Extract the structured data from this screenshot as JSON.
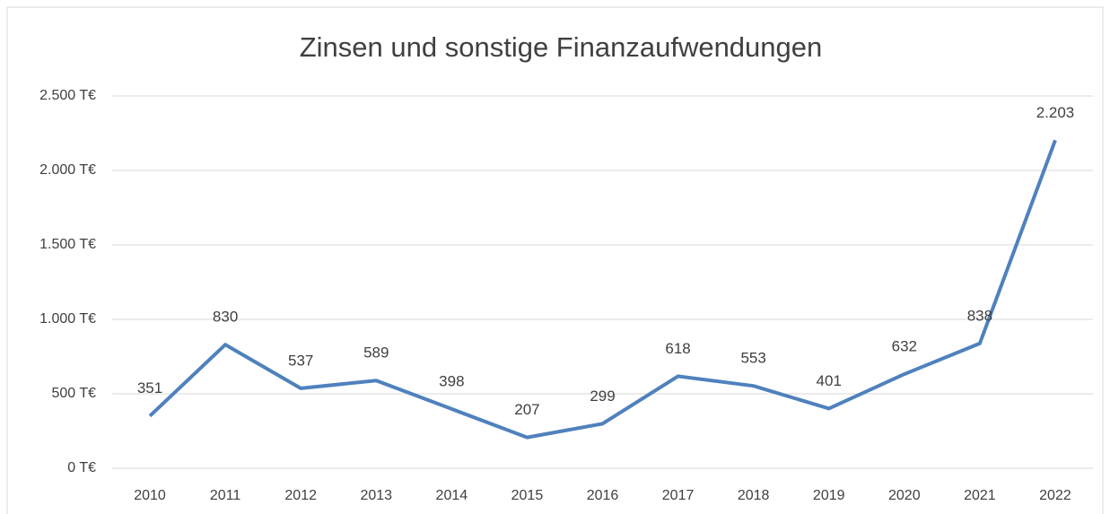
{
  "chart_data": {
    "type": "line",
    "title": "Zinsen und sonstige Finanzaufwendungen",
    "categories": [
      "2010",
      "2011",
      "2012",
      "2013",
      "2014",
      "2015",
      "2016",
      "2017",
      "2018",
      "2019",
      "2020",
      "2021",
      "2022"
    ],
    "series": [
      {
        "name": "Zinsen und sonstige Finanzaufwendungen",
        "color": "#4f81bd",
        "values": [
          351,
          830,
          537,
          589,
          398,
          207,
          299,
          618,
          553,
          401,
          632,
          838,
          2203
        ],
        "value_labels": [
          "351",
          "830",
          "537",
          "589",
          "398",
          "207",
          "299",
          "618",
          "553",
          "401",
          "632",
          "838",
          "2.203"
        ]
      }
    ],
    "ylim": [
      0,
      2500
    ],
    "yticks": [
      {
        "value": 0,
        "label": "0 T€"
      },
      {
        "value": 500,
        "label": "500 T€"
      },
      {
        "value": 1000,
        "label": "1.000 T€"
      },
      {
        "value": 1500,
        "label": "1.500 T€"
      },
      {
        "value": 2000,
        "label": "2.000 T€"
      },
      {
        "value": 2500,
        "label": "2.500 T€"
      }
    ],
    "grid": true
  }
}
